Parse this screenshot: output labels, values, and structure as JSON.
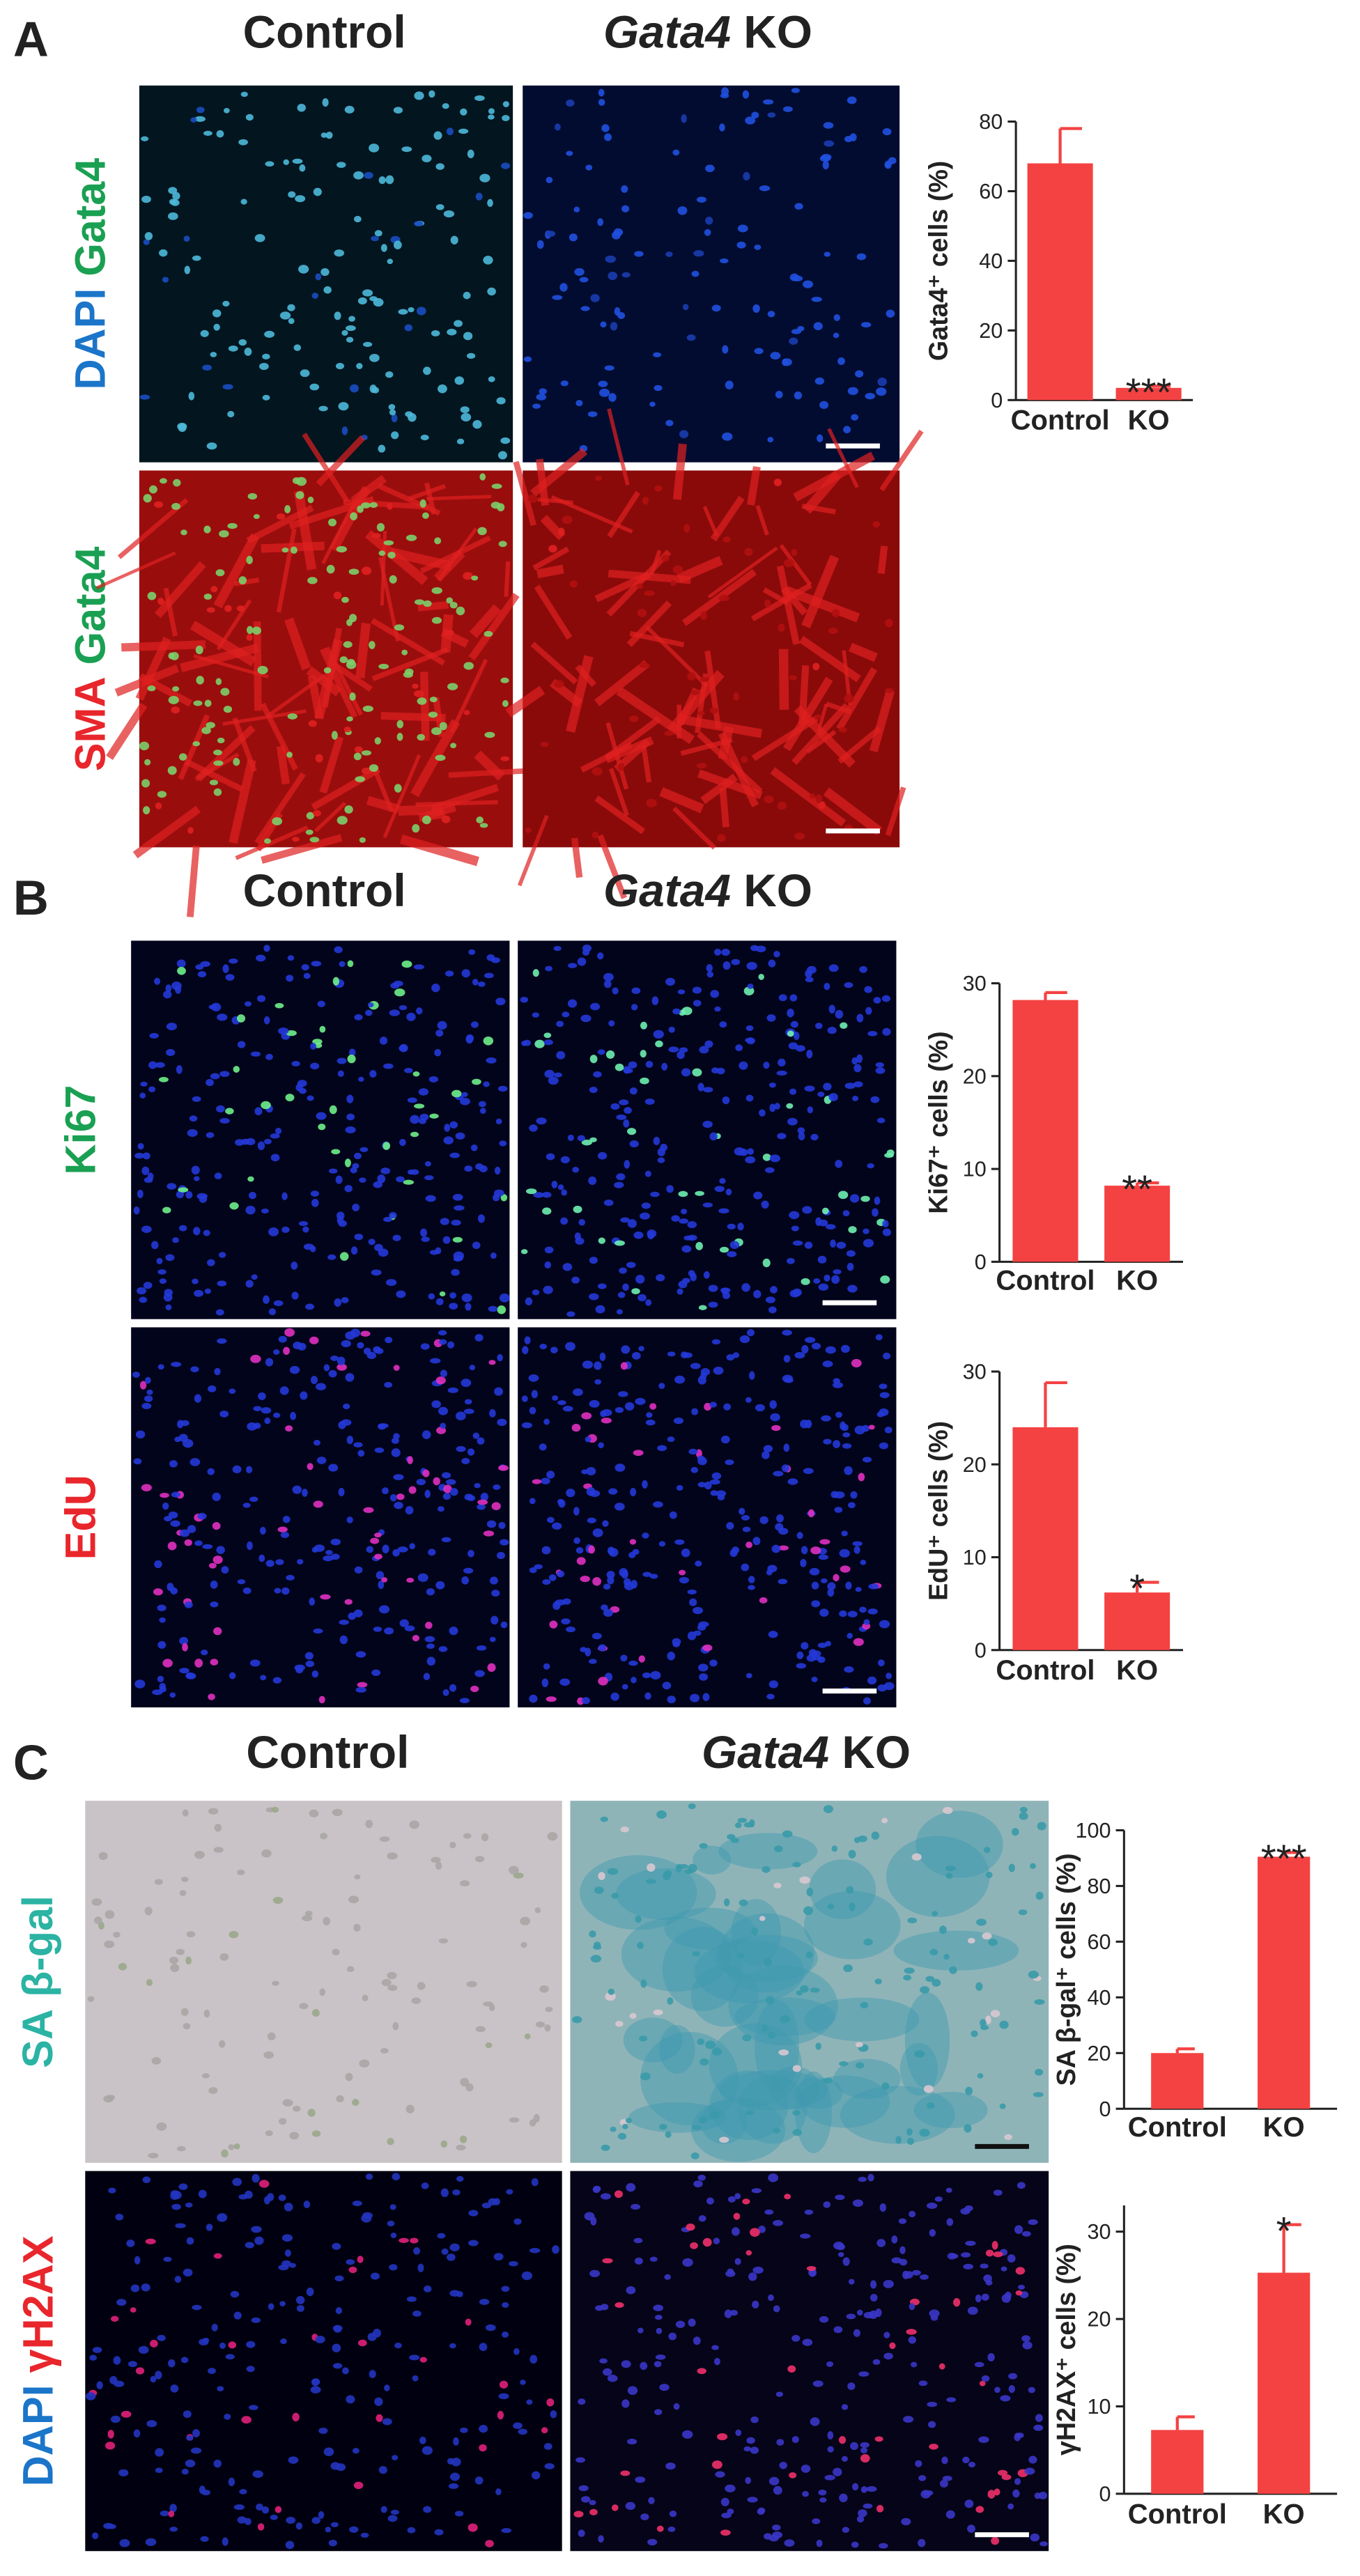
{
  "panels": [
    {
      "letter": "A",
      "columns": [
        {
          "label": "Control"
        },
        {
          "gene": "Gata4",
          "label": "KO"
        }
      ],
      "rows": [
        [
          {
            "text": "DAPI",
            "color": "#1b75c9"
          },
          {
            "text": "Gata4",
            "color": "#1aa052"
          }
        ],
        [
          {
            "text": "SMA",
            "color": "#e8262c"
          },
          {
            "text": "Gata4",
            "color": "#1aa052"
          }
        ]
      ]
    },
    {
      "letter": "B",
      "columns": [
        {
          "label": "Control"
        },
        {
          "gene": "Gata4",
          "label": "KO"
        }
      ],
      "rows": [
        [
          {
            "text": "Ki67",
            "color": "#1aa052"
          }
        ],
        [
          {
            "text": "EdU",
            "color": "#e8262c"
          }
        ]
      ]
    },
    {
      "letter": "C",
      "columns": [
        {
          "label": "Control"
        },
        {
          "gene": "Gata4",
          "label": "KO"
        }
      ],
      "rows": [
        [
          {
            "text": "SA",
            "color": "#2bb3a3"
          },
          {
            "text": "β-gal",
            "color": "#2bb3a3"
          }
        ],
        [
          {
            "text": "DAPI",
            "color": "#1b75c9"
          },
          {
            "text": "γH2AX",
            "color": "#e8262c"
          }
        ]
      ]
    }
  ],
  "chart_data": [
    {
      "type": "bar",
      "ylabel": "Gata4⁺ cells (%)",
      "categories": [
        "Control",
        "KO"
      ],
      "values": [
        68,
        3.5
      ],
      "errors": [
        10,
        0.5
      ],
      "significance": [
        null,
        "***"
      ],
      "color": "#f44242",
      "ylim": [
        0,
        80
      ],
      "yticks": [
        0,
        20,
        40,
        60,
        80
      ]
    },
    {
      "type": "bar",
      "ylabel": "Ki67⁺ cells (%)",
      "categories": [
        "Control",
        "KO"
      ],
      "values": [
        28.2,
        8.2
      ],
      "errors": [
        0.8,
        0.3
      ],
      "significance": [
        null,
        "**"
      ],
      "color": "#f44242",
      "ylim": [
        0,
        30
      ],
      "yticks": [
        0,
        10,
        20,
        30
      ]
    },
    {
      "type": "bar",
      "ylabel": "EdU⁺ cells (%)",
      "categories": [
        "Control",
        "KO"
      ],
      "values": [
        24,
        6.2
      ],
      "errors": [
        4.8,
        1.1
      ],
      "significance": [
        null,
        "*"
      ],
      "color": "#f44242",
      "ylim": [
        0,
        30
      ],
      "yticks": [
        0,
        10,
        20,
        30
      ]
    },
    {
      "type": "bar",
      "ylabel": "SA β-gal⁺ cells (%)",
      "categories": [
        "Control",
        "KO"
      ],
      "values": [
        20,
        90.5
      ],
      "errors": [
        1.5,
        1.5
      ],
      "significance": [
        null,
        "***"
      ],
      "color": "#f44242",
      "ylim": [
        0,
        100
      ],
      "yticks": [
        0,
        20,
        40,
        60,
        80,
        100
      ]
    },
    {
      "type": "bar",
      "ylabel": "γH2AX⁺ cells (%)",
      "categories": [
        "Control",
        "KO"
      ],
      "values": [
        7.3,
        25.3
      ],
      "errors": [
        1.5,
        5.5
      ],
      "significance": [
        null,
        "*"
      ],
      "color": "#f44242",
      "ylim": [
        0,
        33
      ],
      "yticks": [
        0,
        10,
        20,
        30
      ]
    }
  ]
}
